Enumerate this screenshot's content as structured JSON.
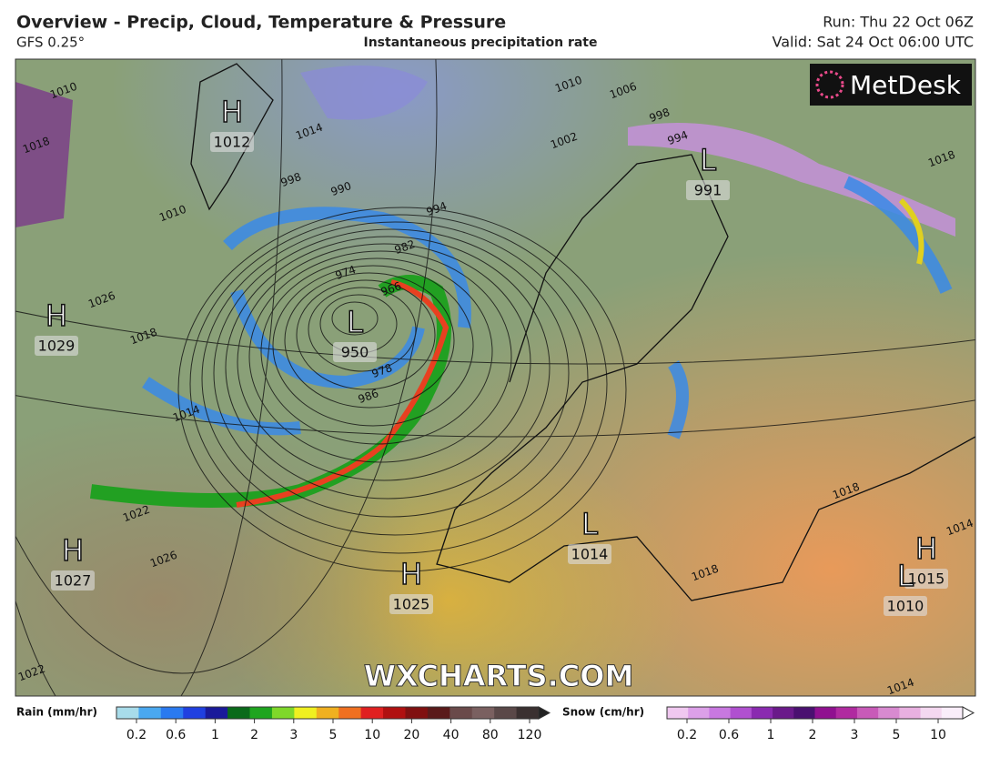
{
  "header": {
    "title": "Overview - Precip, Cloud, Temperature & Pressure",
    "model": "GFS 0.25°",
    "product": "Instantaneous precipitation rate",
    "run": "Run: Thu 22 Oct 06Z",
    "valid": "Valid: Sat 24 Oct 06:00 UTC"
  },
  "logo": "MetDesk",
  "watermark": "WXCHARTS.COM",
  "pressure_centers": [
    {
      "kind": "H",
      "value": 1012
    },
    {
      "kind": "L",
      "value": 991
    },
    {
      "kind": "H",
      "value": 1029
    },
    {
      "kind": "L",
      "value": 950
    },
    {
      "kind": "H",
      "value": 1027
    },
    {
      "kind": "H",
      "value": 1025
    },
    {
      "kind": "L",
      "value": 1014
    },
    {
      "kind": "H",
      "value": 1015
    },
    {
      "kind": "L",
      "value": 1010
    }
  ],
  "isobar_labels": [
    1010,
    1018,
    1014,
    1010,
    1006,
    998,
    994,
    1002,
    998,
    990,
    994,
    982,
    974,
    966,
    978,
    986,
    1010,
    1026,
    1018,
    1014,
    1022,
    1026,
    1022,
    1018,
    1018,
    1014,
    1018,
    1014
  ],
  "legend": {
    "rain": {
      "label": "Rain (mm/hr)",
      "colors": [
        "#a8dcea",
        "#4aa8f0",
        "#2a7af0",
        "#2040e0",
        "#1a1a9a",
        "#0a6a1a",
        "#1fa51f",
        "#7fd82a",
        "#f0f020",
        "#f0b020",
        "#f07020",
        "#e02020",
        "#b01010",
        "#801010",
        "#5a1a1a",
        "#6a4a4a",
        "#7a6060",
        "#5a4848",
        "#3a3030"
      ],
      "ticks": [
        "0.2",
        "0.6",
        "1",
        "2",
        "3",
        "5",
        "10",
        "20",
        "40",
        "80",
        "120"
      ]
    },
    "snow": {
      "label": "Snow (cm/hr)",
      "colors": [
        "#f0c8f0",
        "#dca0e8",
        "#c878e0",
        "#b050d0",
        "#8a2ab0",
        "#6a1a8a",
        "#4a1070",
        "#901090",
        "#b02aa0",
        "#c85ab8",
        "#d88ad0",
        "#e8b0e0",
        "#f4d8f0",
        "#faeefa"
      ],
      "ticks": [
        "0.2",
        "0.6",
        "1",
        "2",
        "3",
        "5",
        "10"
      ]
    }
  }
}
